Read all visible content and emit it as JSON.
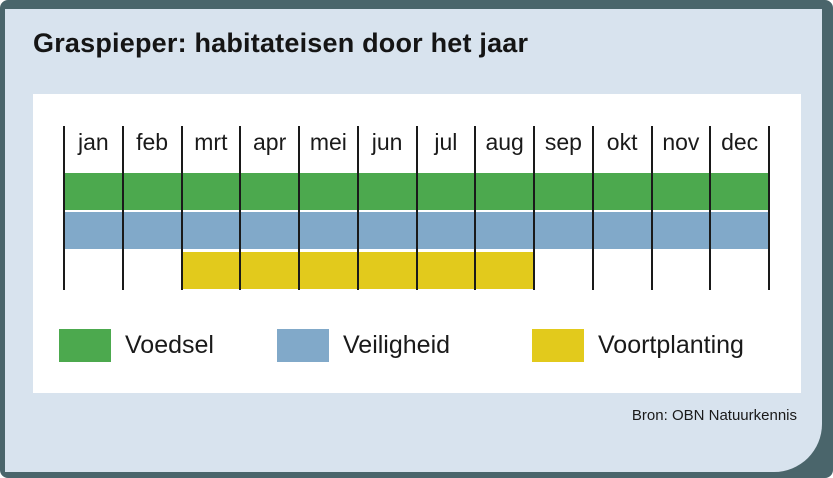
{
  "title": "Graspieper: habitateisen door het jaar",
  "source": "Bron: OBN Natuurkennis",
  "colors": {
    "frame": "#4a656b",
    "card_background": "#d8e3ee",
    "panel_background": "#ffffff",
    "separator_line": "#1a1a1a",
    "voedsel_green": "#4ca94e",
    "veiligheid_blue": "#81a9c9",
    "voortplanting_yellow": "#e2ca1c"
  },
  "chart_data": {
    "type": "bar",
    "subtype": "gantt-month-timeline",
    "title": "Graspieper: habitateisen door het jaar",
    "categories": [
      "jan",
      "feb",
      "mrt",
      "apr",
      "mei",
      "jun",
      "jul",
      "aug",
      "sep",
      "okt",
      "nov",
      "dec"
    ],
    "series": [
      {
        "name": "Voedsel",
        "color": "#4ca94e",
        "start": 0,
        "end": 11,
        "active_months": "jan-dec"
      },
      {
        "name": "Veiligheid",
        "color": "#81a9c9",
        "start": 0,
        "end": 11,
        "active_months": "jan-dec"
      },
      {
        "name": "Voortplanting",
        "color": "#e2ca1c",
        "start": 2,
        "end": 7,
        "active_months": "mrt-aug"
      }
    ],
    "legend_position": "bottom",
    "grid": "vertical month separator lines"
  }
}
